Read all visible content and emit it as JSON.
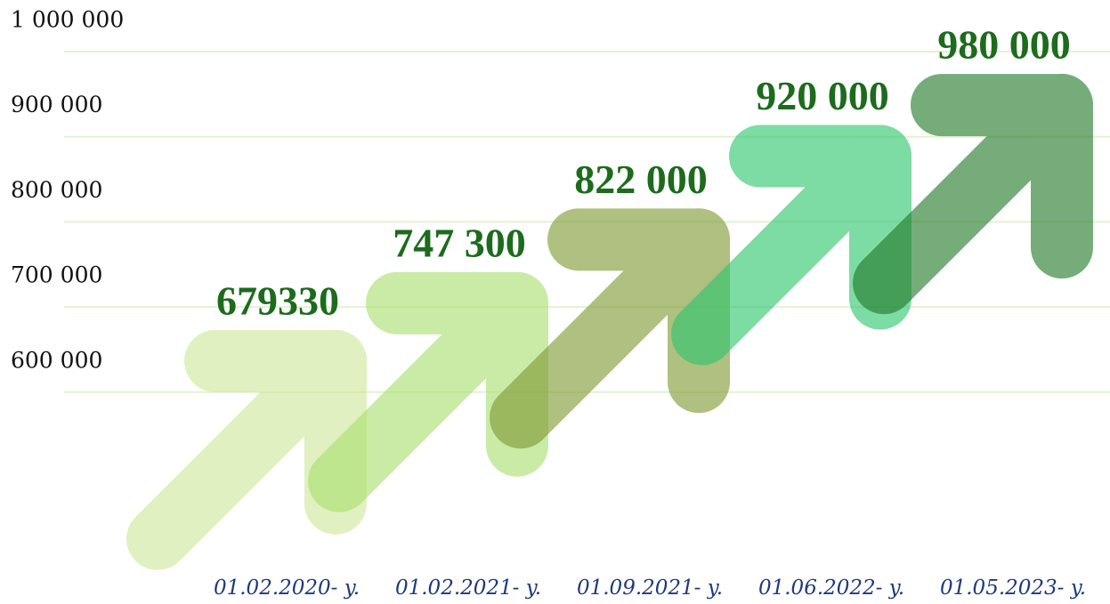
{
  "chart_data": {
    "type": "arrow",
    "categories": [
      "01.02.2020- y.",
      "01.02.2021- y.",
      "01.09.2021- y.",
      "01.06.2022- y.",
      "01.05.2023- y."
    ],
    "values": [
      679330,
      747300,
      822000,
      920000,
      980000
    ],
    "value_labels": [
      "679330",
      "747 300",
      "822 000",
      "920 000",
      "980 000"
    ],
    "colors": [
      "#cfe89a",
      "#a9e070",
      "#7f9a35",
      "#2ec66e",
      "#237a2a"
    ],
    "ylim": [
      350000,
      1000000
    ],
    "yticks": [
      {
        "value": 600000,
        "label": "600 000"
      },
      {
        "value": 700000,
        "label": "700 000"
      },
      {
        "value": 800000,
        "label": "800 000"
      },
      {
        "value": 900000,
        "label": "900 000"
      },
      {
        "value": 1000000,
        "label": "1 000 000"
      }
    ],
    "grid": true
  }
}
